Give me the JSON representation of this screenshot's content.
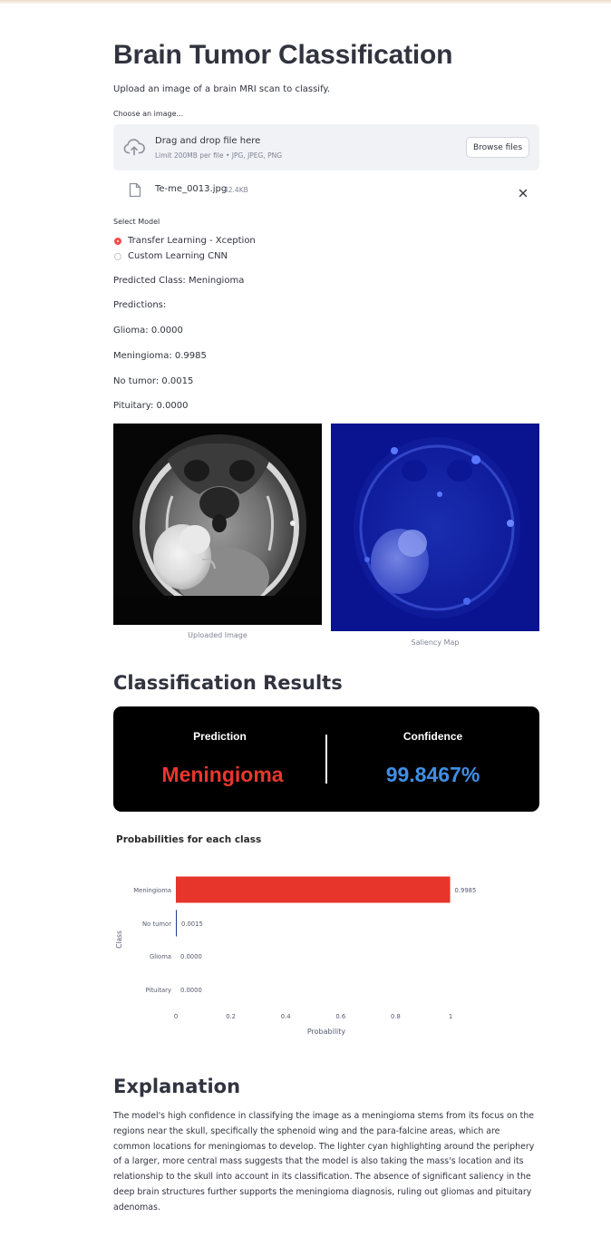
{
  "page": {
    "title": "Brain Tumor Classification",
    "subtitle": "Upload an image of a brain MRI scan to classify."
  },
  "uploader": {
    "label": "Choose an image...",
    "drop_text": "Drag and drop file here",
    "limit_text": "Limit 200MB per file • JPG, JPEG, PNG",
    "browse_label": "Browse files",
    "file_name": "Te-me_0013.jpg",
    "file_size": "42.4KB",
    "icons": [
      "cloud-upload-icon",
      "file-icon",
      "close-icon"
    ]
  },
  "model_select": {
    "label": "Select Model",
    "options": [
      "Transfer Learning - Xception",
      "Custom Learning CNN"
    ],
    "selected": "Transfer Learning - Xception"
  },
  "predicted_text": "Predicted Class: Meningioma",
  "predictions_heading": "Predictions:",
  "predictions": [
    "Glioma: 0.0000",
    "Meningioma: 0.9985",
    "No tumor: 0.0015",
    "Pituitary: 0.0000"
  ],
  "images": {
    "uploaded_caption": "Uploaded Image",
    "saliency_caption": "Saliency Map"
  },
  "results": {
    "heading": "Classification Results",
    "prediction_label": "Prediction",
    "prediction_value": "Meningioma",
    "confidence_label": "Confidence",
    "confidence_value": "99.8467%",
    "prediction_color": "#e8372c",
    "confidence_color": "#3f8fe6"
  },
  "chart_data": {
    "type": "bar",
    "orientation": "horizontal",
    "title": "Probabilities for each class",
    "xlabel": "Probability",
    "ylabel": "Class",
    "categories": [
      "Meningioma",
      "No tumor",
      "Glioma",
      "Pituitary"
    ],
    "values": [
      0.9985,
      0.0015,
      0.0,
      0.0
    ],
    "data_labels": [
      "0.9985",
      "0.0015",
      "0.0000",
      "0.0000"
    ],
    "colors": [
      "#e8352b",
      "#1f3a8a",
      "#1f3a8a",
      "#1f3a8a"
    ],
    "xlim": [
      0,
      1
    ],
    "xticks": [
      0,
      0.2,
      0.4,
      0.6,
      0.8,
      1
    ],
    "xtick_labels": [
      "0",
      "0.2",
      "0.4",
      "0.6",
      "0.8",
      "1"
    ],
    "grid": false
  },
  "explanation": {
    "heading": "Explanation",
    "text": "The model's high confidence in classifying the image as a meningioma stems from its focus on the regions near the skull, specifically the sphenoid wing and the para-falcine areas, which are common locations for meningiomas to develop. The lighter cyan highlighting around the periphery of a larger, more central mass suggests that the model is also taking the mass's location and its relationship to the skull into account in its classification. The absence of significant saliency in the deep brain structures further supports the meningioma diagnosis, ruling out gliomas and pituitary adenomas."
  }
}
